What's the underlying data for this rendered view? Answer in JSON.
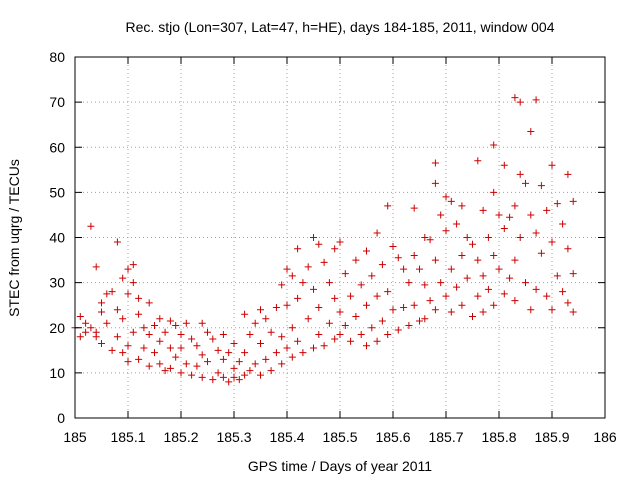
{
  "chart_data": {
    "type": "scatter",
    "title": "Rec. stjo (Lon=307, Lat=47, h=HE), days 184-185, 2011, window 004",
    "xlabel": "GPS time / Days of year 2011",
    "ylabel": "STEC from uqrg / TECUs",
    "xlim": [
      185,
      186
    ],
    "ylim": [
      0,
      80
    ],
    "xticks": [
      185,
      185.1,
      185.2,
      185.3,
      185.4,
      185.5,
      185.6,
      185.7,
      185.8,
      185.9,
      186
    ],
    "xtick_labels": [
      "185",
      "185.1",
      "185.2",
      "185.3",
      "185.4",
      "185.5",
      "185.6",
      "185.7",
      "185.8",
      "185.9",
      "186"
    ],
    "yticks": [
      0,
      10,
      20,
      30,
      40,
      50,
      60,
      70,
      80
    ],
    "ytick_labels": [
      "0",
      "10",
      "20",
      "30",
      "40",
      "50",
      "60",
      "70",
      "80"
    ],
    "grid": true,
    "marker": "+",
    "color": "#cc0000",
    "points": [
      [
        185.0,
        20.0
      ],
      [
        185.01,
        22.5
      ],
      [
        185.01,
        18.0
      ],
      [
        185.02,
        21.0
      ],
      [
        185.02,
        19.0
      ],
      [
        185.03,
        42.5
      ],
      [
        185.03,
        20.0
      ],
      [
        185.04,
        33.5
      ],
      [
        185.04,
        19.0
      ],
      [
        185.04,
        18.0
      ],
      [
        185.05,
        23.5
      ],
      [
        185.05,
        16.5
      ],
      [
        185.05,
        25.5
      ],
      [
        185.06,
        27.5
      ],
      [
        185.06,
        21.0
      ],
      [
        185.07,
        15.0
      ],
      [
        185.07,
        28.0
      ],
      [
        185.08,
        39.0
      ],
      [
        185.08,
        24.0
      ],
      [
        185.08,
        18.0
      ],
      [
        185.09,
        31.0
      ],
      [
        185.09,
        14.5
      ],
      [
        185.09,
        22.0
      ],
      [
        185.1,
        33.0
      ],
      [
        185.1,
        27.5
      ],
      [
        185.1,
        16.0
      ],
      [
        185.1,
        12.5
      ],
      [
        185.11,
        34.0
      ],
      [
        185.11,
        30.0
      ],
      [
        185.11,
        19.0
      ],
      [
        185.12,
        26.5
      ],
      [
        185.12,
        13.0
      ],
      [
        185.12,
        23.0
      ],
      [
        185.13,
        20.0
      ],
      [
        185.13,
        15.5
      ],
      [
        185.14,
        25.5
      ],
      [
        185.14,
        11.5
      ],
      [
        185.14,
        18.5
      ],
      [
        185.15,
        20.5
      ],
      [
        185.15,
        14.5
      ],
      [
        185.16,
        22.0
      ],
      [
        185.16,
        12.0
      ],
      [
        185.16,
        17.0
      ],
      [
        185.17,
        19.0
      ],
      [
        185.17,
        10.5
      ],
      [
        185.18,
        21.5
      ],
      [
        185.18,
        15.5
      ],
      [
        185.18,
        11.0
      ],
      [
        185.19,
        20.5
      ],
      [
        185.19,
        13.5
      ],
      [
        185.2,
        18.5
      ],
      [
        185.2,
        10.0
      ],
      [
        185.2,
        15.5
      ],
      [
        185.21,
        21.0
      ],
      [
        185.21,
        12.0
      ],
      [
        185.22,
        17.5
      ],
      [
        185.22,
        9.5
      ],
      [
        185.23,
        16.0
      ],
      [
        185.23,
        11.5
      ],
      [
        185.24,
        21.0
      ],
      [
        185.24,
        9.0
      ],
      [
        185.24,
        14.0
      ],
      [
        185.25,
        19.0
      ],
      [
        185.25,
        12.5
      ],
      [
        185.26,
        17.5
      ],
      [
        185.26,
        8.5
      ],
      [
        185.27,
        15.0
      ],
      [
        185.27,
        10.0
      ],
      [
        185.28,
        18.5
      ],
      [
        185.28,
        9.0
      ],
      [
        185.28,
        13.0
      ],
      [
        185.29,
        14.5
      ],
      [
        185.29,
        8.0
      ],
      [
        185.3,
        16.5
      ],
      [
        185.3,
        11.0
      ],
      [
        185.3,
        9.0
      ],
      [
        185.31,
        12.5
      ],
      [
        185.31,
        8.5
      ],
      [
        185.32,
        23.0
      ],
      [
        185.32,
        14.5
      ],
      [
        185.32,
        9.5
      ],
      [
        185.33,
        18.5
      ],
      [
        185.33,
        10.5
      ],
      [
        185.34,
        21.0
      ],
      [
        185.34,
        12.0
      ],
      [
        185.35,
        24.0
      ],
      [
        185.35,
        9.5
      ],
      [
        185.35,
        16.5
      ],
      [
        185.36,
        22.0
      ],
      [
        185.36,
        13.0
      ],
      [
        185.37,
        19.0
      ],
      [
        185.37,
        10.5
      ],
      [
        185.38,
        24.5
      ],
      [
        185.38,
        14.5
      ],
      [
        185.39,
        29.5
      ],
      [
        185.39,
        18.0
      ],
      [
        185.39,
        12.0
      ],
      [
        185.4,
        33.0
      ],
      [
        185.4,
        25.0
      ],
      [
        185.4,
        15.5
      ],
      [
        185.41,
        31.5
      ],
      [
        185.41,
        20.0
      ],
      [
        185.41,
        13.5
      ],
      [
        185.42,
        37.5
      ],
      [
        185.42,
        26.5
      ],
      [
        185.42,
        17.0
      ],
      [
        185.43,
        30.0
      ],
      [
        185.43,
        14.5
      ],
      [
        185.44,
        33.5
      ],
      [
        185.44,
        22.0
      ],
      [
        185.45,
        40.0
      ],
      [
        185.45,
        28.5
      ],
      [
        185.45,
        15.5
      ],
      [
        185.46,
        38.5
      ],
      [
        185.46,
        24.5
      ],
      [
        185.46,
        18.5
      ],
      [
        185.47,
        34.5
      ],
      [
        185.47,
        16.0
      ],
      [
        185.48,
        30.0
      ],
      [
        185.48,
        21.0
      ],
      [
        185.49,
        37.5
      ],
      [
        185.49,
        26.5
      ],
      [
        185.49,
        17.5
      ],
      [
        185.5,
        39.0
      ],
      [
        185.5,
        23.5
      ],
      [
        185.5,
        18.5
      ],
      [
        185.51,
        32.0
      ],
      [
        185.51,
        20.5
      ],
      [
        185.52,
        27.0
      ],
      [
        185.52,
        17.0
      ],
      [
        185.53,
        35.0
      ],
      [
        185.53,
        22.5
      ],
      [
        185.54,
        29.5
      ],
      [
        185.54,
        18.5
      ],
      [
        185.55,
        37.0
      ],
      [
        185.55,
        25.0
      ],
      [
        185.55,
        16.0
      ],
      [
        185.56,
        31.5
      ],
      [
        185.56,
        20.0
      ],
      [
        185.57,
        41.0
      ],
      [
        185.57,
        27.0
      ],
      [
        185.57,
        17.0
      ],
      [
        185.58,
        34.0
      ],
      [
        185.58,
        21.5
      ],
      [
        185.59,
        47.0
      ],
      [
        185.59,
        28.0
      ],
      [
        185.59,
        18.5
      ],
      [
        185.6,
        38.0
      ],
      [
        185.6,
        24.0
      ],
      [
        185.61,
        35.5
      ],
      [
        185.61,
        19.5
      ],
      [
        185.62,
        33.0
      ],
      [
        185.62,
        24.5
      ],
      [
        185.63,
        30.0
      ],
      [
        185.63,
        20.5
      ],
      [
        185.64,
        46.5
      ],
      [
        185.64,
        36.0
      ],
      [
        185.64,
        25.0
      ],
      [
        185.65,
        33.0
      ],
      [
        185.65,
        21.5
      ],
      [
        185.66,
        40.0
      ],
      [
        185.66,
        29.5
      ],
      [
        185.66,
        22.0
      ],
      [
        185.67,
        39.5
      ],
      [
        185.67,
        26.0
      ],
      [
        185.68,
        56.5
      ],
      [
        185.68,
        52.0
      ],
      [
        185.68,
        35.0
      ],
      [
        185.68,
        24.0
      ],
      [
        185.69,
        45.0
      ],
      [
        185.69,
        30.0
      ],
      [
        185.7,
        49.0
      ],
      [
        185.7,
        41.5
      ],
      [
        185.7,
        27.0
      ],
      [
        185.71,
        48.0
      ],
      [
        185.71,
        33.0
      ],
      [
        185.71,
        23.5
      ],
      [
        185.72,
        43.0
      ],
      [
        185.72,
        29.0
      ],
      [
        185.73,
        47.0
      ],
      [
        185.73,
        36.0
      ],
      [
        185.73,
        25.0
      ],
      [
        185.74,
        40.0
      ],
      [
        185.74,
        31.0
      ],
      [
        185.75,
        38.5
      ],
      [
        185.75,
        22.5
      ],
      [
        185.76,
        57.0
      ],
      [
        185.76,
        35.0
      ],
      [
        185.76,
        27.0
      ],
      [
        185.77,
        46.0
      ],
      [
        185.77,
        31.5
      ],
      [
        185.77,
        23.5
      ],
      [
        185.78,
        40.0
      ],
      [
        185.78,
        28.5
      ],
      [
        185.79,
        60.5
      ],
      [
        185.79,
        50.0
      ],
      [
        185.79,
        36.0
      ],
      [
        185.79,
        25.0
      ],
      [
        185.8,
        45.0
      ],
      [
        185.8,
        33.0
      ],
      [
        185.81,
        56.0
      ],
      [
        185.81,
        42.0
      ],
      [
        185.81,
        27.5
      ],
      [
        185.82,
        44.5
      ],
      [
        185.82,
        31.0
      ],
      [
        185.83,
        71.0
      ],
      [
        185.83,
        47.0
      ],
      [
        185.83,
        35.0
      ],
      [
        185.83,
        26.0
      ],
      [
        185.84,
        70.0
      ],
      [
        185.84,
        54.0
      ],
      [
        185.84,
        40.0
      ],
      [
        185.85,
        52.0
      ],
      [
        185.85,
        30.0
      ],
      [
        185.86,
        63.5
      ],
      [
        185.86,
        45.0
      ],
      [
        185.86,
        24.0
      ],
      [
        185.87,
        70.5
      ],
      [
        185.87,
        41.0
      ],
      [
        185.87,
        28.5
      ],
      [
        185.88,
        51.5
      ],
      [
        185.88,
        36.5
      ],
      [
        185.89,
        46.0
      ],
      [
        185.89,
        27.0
      ],
      [
        185.9,
        56.0
      ],
      [
        185.9,
        39.0
      ],
      [
        185.9,
        24.0
      ],
      [
        185.91,
        47.5
      ],
      [
        185.91,
        31.5
      ],
      [
        185.92,
        43.0
      ],
      [
        185.92,
        28.0
      ],
      [
        185.93,
        54.0
      ],
      [
        185.93,
        37.5
      ],
      [
        185.93,
        25.5
      ],
      [
        185.94,
        48.0
      ],
      [
        185.94,
        32.0
      ],
      [
        185.94,
        23.5
      ]
    ]
  }
}
